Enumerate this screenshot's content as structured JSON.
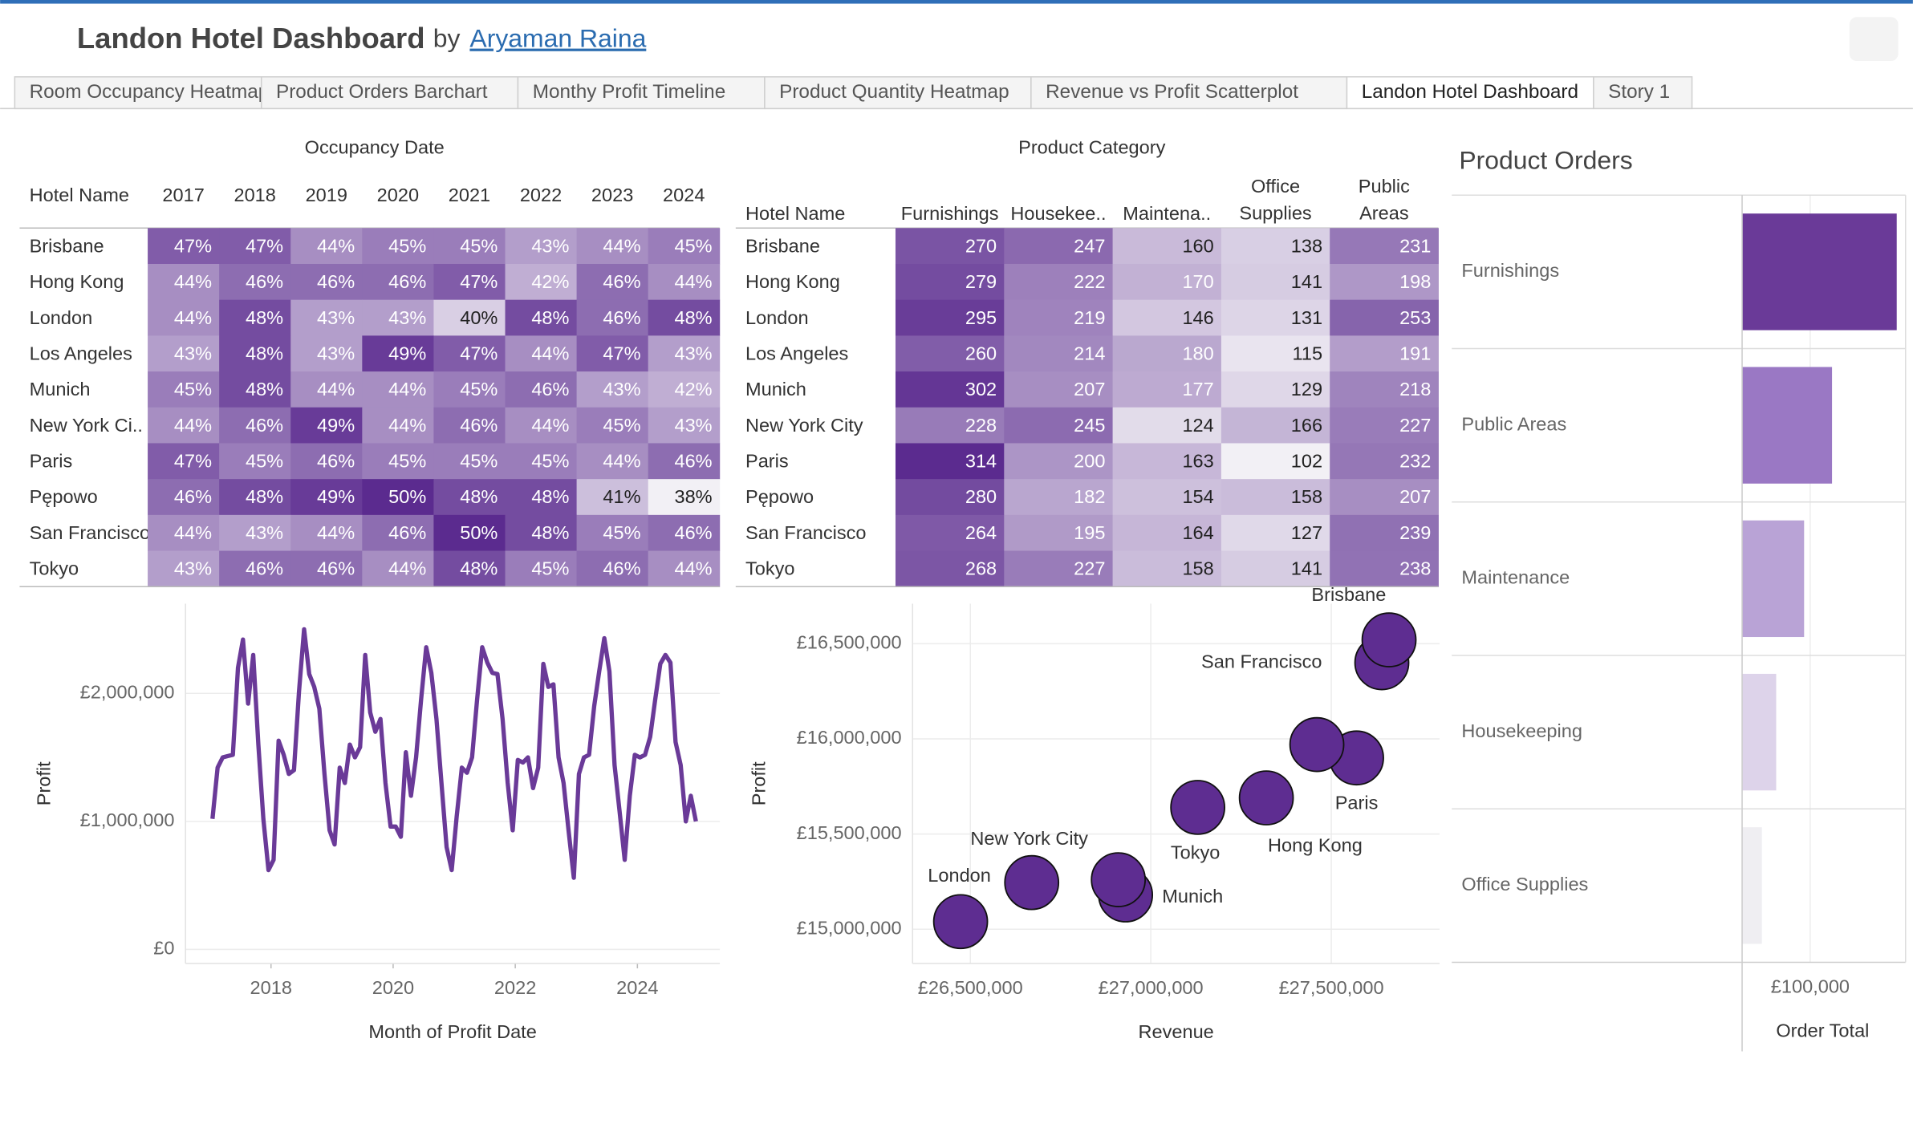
{
  "header": {
    "title": "Landon Hotel Dashboard",
    "by": "by",
    "author": "Aryaman Raina"
  },
  "tabs": [
    "Room Occupancy Heatmap",
    "Product Orders Barchart",
    "Monthy Profit Timeline",
    "Product Quantity Heatmap",
    "Revenue vs Profit Scatterplot",
    "Landon Hotel Dashboard",
    "Story 1"
  ],
  "active_tab": 5,
  "chart_data": [
    {
      "type": "heatmap",
      "title": "Occupancy Date",
      "row_header": "Hotel Name",
      "rows": [
        "Brisbane",
        "Hong Kong",
        "London",
        "Los Angeles",
        "Munich",
        "New York Ci..",
        "Paris",
        "Pępowo",
        "San Francisco",
        "Tokyo"
      ],
      "columns": [
        "2017",
        "2018",
        "2019",
        "2020",
        "2021",
        "2022",
        "2023",
        "2024"
      ],
      "values": [
        [
          47,
          47,
          44,
          45,
          45,
          43,
          44,
          45
        ],
        [
          44,
          46,
          46,
          46,
          47,
          42,
          46,
          44
        ],
        [
          44,
          48,
          43,
          43,
          40,
          48,
          46,
          48
        ],
        [
          43,
          48,
          43,
          49,
          47,
          44,
          47,
          43
        ],
        [
          45,
          48,
          44,
          44,
          45,
          46,
          43,
          42
        ],
        [
          44,
          46,
          49,
          44,
          46,
          44,
          45,
          43
        ],
        [
          47,
          45,
          46,
          45,
          45,
          45,
          44,
          46
        ],
        [
          46,
          48,
          49,
          50,
          48,
          48,
          41,
          38
        ],
        [
          44,
          43,
          44,
          46,
          50,
          48,
          45,
          46
        ],
        [
          43,
          46,
          46,
          44,
          48,
          45,
          46,
          44
        ]
      ],
      "value_labels": [
        [
          "47%",
          "47%",
          "44%",
          "45%",
          "45%",
          "43%",
          "44%",
          "45%"
        ],
        [
          "44%",
          "46%",
          "46%",
          "46%",
          "47%",
          "42%",
          "46%",
          "44%"
        ],
        [
          "44%",
          "48%",
          "43%",
          "43%",
          "40%",
          "48%",
          "46%",
          "48%"
        ],
        [
          "43%",
          "48%",
          "43%",
          "49%",
          "47%",
          "44%",
          "47%",
          "43%"
        ],
        [
          "45%",
          "48%",
          "44%",
          "44%",
          "45%",
          "46%",
          "43%",
          "42%"
        ],
        [
          "44%",
          "46%",
          "49%",
          "44%",
          "46%",
          "44%",
          "45%",
          "43%"
        ],
        [
          "47%",
          "45%",
          "46%",
          "45%",
          "45%",
          "45%",
          "44%",
          "46%"
        ],
        [
          "46%",
          "48%",
          "49%",
          "50%",
          "48%",
          "48%",
          "41%",
          "38%"
        ],
        [
          "44%",
          "43%",
          "44%",
          "46%",
          "50%",
          "48%",
          "45%",
          "46%"
        ],
        [
          "43%",
          "46%",
          "46%",
          "44%",
          "48%",
          "45%",
          "46%",
          "44%"
        ]
      ],
      "colors": [
        "#f2f0f5",
        "#5b2b8f"
      ]
    },
    {
      "type": "heatmap",
      "title": "Product Category",
      "row_header": "Hotel Name",
      "rows": [
        "Brisbane",
        "Hong Kong",
        "London",
        "Los Angeles",
        "Munich",
        "New York City",
        "Paris",
        "Pępowo",
        "San Francisco",
        "Tokyo"
      ],
      "columns": [
        "Furnishings",
        "Housekee..",
        "Maintena..",
        "Office Supplies",
        "Public Areas"
      ],
      "values": [
        [
          270,
          247,
          160,
          138,
          231
        ],
        [
          279,
          222,
          170,
          141,
          198
        ],
        [
          295,
          219,
          146,
          131,
          253
        ],
        [
          260,
          214,
          180,
          115,
          191
        ],
        [
          302,
          207,
          177,
          129,
          218
        ],
        [
          228,
          245,
          124,
          166,
          227
        ],
        [
          314,
          200,
          163,
          102,
          232
        ],
        [
          280,
          182,
          154,
          158,
          207
        ],
        [
          264,
          195,
          164,
          127,
          239
        ],
        [
          268,
          227,
          158,
          141,
          238
        ]
      ],
      "colors": [
        "#f2f0f5",
        "#5b2b8f"
      ]
    },
    {
      "type": "line",
      "x_title": "Month of Profit Date",
      "y_title": "Profit",
      "color": "#6a3a98",
      "grid": true,
      "x": [
        "2017-01",
        "2017-02",
        "2017-03",
        "2017-04",
        "2017-05",
        "2017-06",
        "2017-07",
        "2017-08",
        "2017-09",
        "2017-10",
        "2017-11",
        "2017-12",
        "2018-01",
        "2018-02",
        "2018-03",
        "2018-04",
        "2018-05",
        "2018-06",
        "2018-07",
        "2018-08",
        "2018-09",
        "2018-10",
        "2018-11",
        "2018-12",
        "2019-01",
        "2019-02",
        "2019-03",
        "2019-04",
        "2019-05",
        "2019-06",
        "2019-07",
        "2019-08",
        "2019-09",
        "2019-10",
        "2019-11",
        "2019-12",
        "2020-01",
        "2020-02",
        "2020-03",
        "2020-04",
        "2020-05",
        "2020-06",
        "2020-07",
        "2020-08",
        "2020-09",
        "2020-10",
        "2020-11",
        "2020-12",
        "2021-01",
        "2021-02",
        "2021-03",
        "2021-04",
        "2021-05",
        "2021-06",
        "2021-07",
        "2021-08",
        "2021-09",
        "2021-10",
        "2021-11",
        "2021-12",
        "2022-01",
        "2022-02",
        "2022-03",
        "2022-04",
        "2022-05",
        "2022-06",
        "2022-07",
        "2022-08",
        "2022-09",
        "2022-10",
        "2022-11",
        "2022-12",
        "2023-01",
        "2023-02",
        "2023-03",
        "2023-04",
        "2023-05",
        "2023-06",
        "2023-07",
        "2023-08",
        "2023-09",
        "2023-10",
        "2023-11",
        "2023-12",
        "2024-01",
        "2024-02",
        "2024-03",
        "2024-04",
        "2024-05",
        "2024-06",
        "2024-07",
        "2024-08",
        "2024-09",
        "2024-10",
        "2024-11",
        "2024-12"
      ],
      "values": [
        1020000,
        1420000,
        1500000,
        1510000,
        1520000,
        2200000,
        2420000,
        1920000,
        2300000,
        1600000,
        1020000,
        620000,
        700000,
        1630000,
        1520000,
        1370000,
        1400000,
        2010000,
        2500000,
        2150000,
        2050000,
        1880000,
        1370000,
        930000,
        820000,
        1420000,
        1300000,
        1600000,
        1500000,
        1580000,
        2300000,
        1850000,
        1700000,
        1800000,
        1300000,
        960000,
        960000,
        880000,
        1540000,
        1200000,
        1500000,
        1950000,
        2360000,
        2160000,
        1800000,
        1300000,
        800000,
        620000,
        1040000,
        1420000,
        1380000,
        1500000,
        1950000,
        2360000,
        2240000,
        2160000,
        2150000,
        1800000,
        1300000,
        930000,
        1480000,
        1460000,
        1500000,
        1260000,
        1420000,
        2230000,
        2050000,
        2070000,
        1500000,
        1300000,
        920000,
        560000,
        1370000,
        1500000,
        1520000,
        1900000,
        2170000,
        2430000,
        2170000,
        1440000,
        1080000,
        700000,
        1200000,
        1520000,
        1500000,
        1520000,
        1660000,
        1950000,
        2230000,
        2300000,
        2240000,
        1620000,
        1440000,
        1000000,
        1200000,
        1000000
      ],
      "xlim": [
        2016.6,
        2025.35
      ],
      "xticks": [
        2018,
        2020,
        2022,
        2024
      ],
      "ylim": [
        -110000,
        2700000
      ],
      "yticks": [
        {
          "value": 0,
          "label": "£0"
        },
        {
          "value": 1000000,
          "label": "£1,000,000"
        },
        {
          "value": 2000000,
          "label": "£2,000,000"
        }
      ]
    },
    {
      "type": "scatter",
      "x_title": "Revenue",
      "y_title": "Profit",
      "color": "#5e2d91",
      "grid": true,
      "labels": [
        "Brisbane",
        "San Francisco",
        null,
        "Paris",
        "Hong Kong",
        "Tokyo",
        null,
        "Munich",
        "New York City",
        "London"
      ],
      "x": [
        27660000,
        27640000,
        27460000,
        27570000,
        27320000,
        27130000,
        26910000,
        26930000,
        26670000,
        26473000
      ],
      "values": [
        16520000,
        16400000,
        15970000,
        15900000,
        15690000,
        15640000,
        15260000,
        15180000,
        15245000,
        15040000
      ],
      "xlim": [
        26340000,
        27800000
      ],
      "xticks": [
        {
          "value": 26500000,
          "label": "£26,500,000"
        },
        {
          "value": 27000000,
          "label": "£27,000,000"
        },
        {
          "value": 27500000,
          "label": "£27,500,000"
        }
      ],
      "ylim": [
        14820000,
        16710000
      ],
      "yticks": [
        {
          "value": 15000000,
          "label": "£15,000,000"
        },
        {
          "value": 15500000,
          "label": "£15,500,000"
        },
        {
          "value": 16000000,
          "label": "£16,000,000"
        },
        {
          "value": 16500000,
          "label": "£16,500,000"
        }
      ]
    },
    {
      "type": "bar",
      "orientation": "horizontal",
      "title": "Product Orders",
      "x_title": "Order Total",
      "categories": [
        "Furnishings",
        "Public Areas",
        "Maintenance",
        "Housekeeping",
        "Office Supplies"
      ],
      "values": [
        227000,
        132000,
        91000,
        50000,
        29000
      ],
      "colors": [
        "#6a3a98",
        "#9a78c4",
        "#b9a3d6",
        "#ddd3ea",
        "#efeef2"
      ],
      "xlim": [
        0,
        240000
      ],
      "xticks": [
        {
          "value": 100000,
          "label": "£100,000"
        }
      ]
    }
  ]
}
